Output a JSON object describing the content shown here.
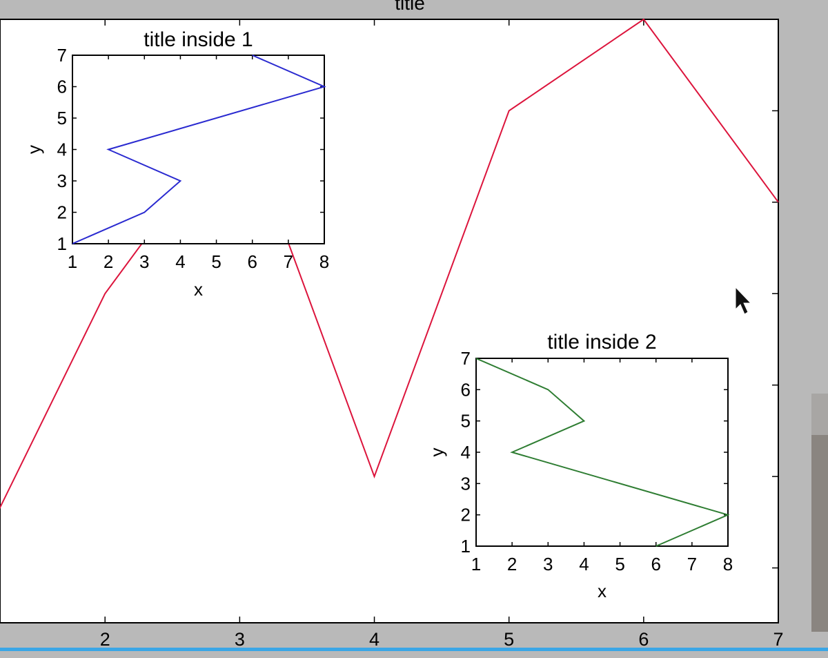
{
  "colors": {
    "background": "#b9b9b9",
    "plot_background": "#ffffff",
    "bottom_bar": "#3aa6e6"
  },
  "chart_data": [
    {
      "id": "main",
      "type": "line",
      "title": "title",
      "xlabel": "",
      "ylabel": "",
      "xlim": [
        1.22,
        7
      ],
      "ylim": [
        0.4,
        7
      ],
      "x_ticks": [
        2,
        3,
        4,
        5,
        6,
        7
      ],
      "y_ticks": [
        1,
        2,
        3,
        4,
        5,
        6,
        7
      ],
      "show_y_tick_labels": false,
      "grid": false,
      "series": [
        {
          "color": "#dc143c",
          "x": [
            1,
            2,
            3,
            4,
            5,
            6,
            7
          ],
          "y": [
            1,
            4,
            6,
            2,
            6,
            7,
            5
          ]
        }
      ]
    },
    {
      "id": "inset1",
      "type": "line",
      "title": "title inside 1",
      "xlabel": "x",
      "ylabel": "y",
      "xlim": [
        1,
        8
      ],
      "ylim": [
        1,
        7
      ],
      "x_ticks": [
        1,
        2,
        3,
        4,
        5,
        6,
        7,
        8
      ],
      "y_ticks": [
        1,
        2,
        3,
        4,
        5,
        6,
        7
      ],
      "grid": false,
      "series": [
        {
          "color": "#2a2ad0",
          "x": [
            1,
            3,
            4,
            2,
            8,
            6
          ],
          "y": [
            1,
            2,
            3,
            4,
            6,
            7
          ]
        }
      ]
    },
    {
      "id": "inset2",
      "type": "line",
      "title": "title inside 2",
      "xlabel": "x",
      "ylabel": "y",
      "xlim": [
        1,
        8
      ],
      "ylim": [
        1,
        7
      ],
      "x_ticks": [
        1,
        2,
        3,
        4,
        5,
        6,
        7,
        8
      ],
      "y_ticks": [
        1,
        2,
        3,
        4,
        5,
        6,
        7
      ],
      "grid": false,
      "series": [
        {
          "color": "#2e7d32",
          "x": [
            6,
            8,
            2,
            4,
            3,
            1
          ],
          "y": [
            1,
            2,
            4,
            5,
            6,
            7
          ]
        }
      ]
    }
  ]
}
